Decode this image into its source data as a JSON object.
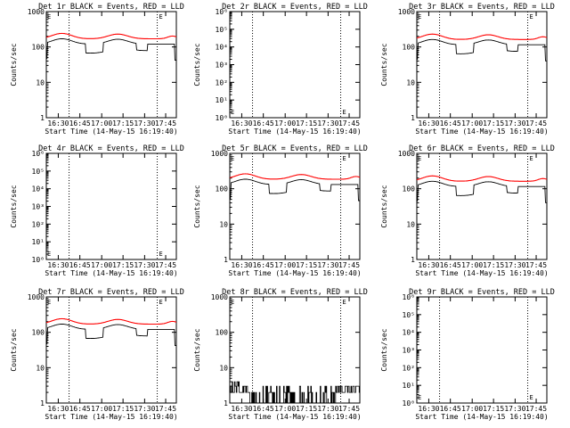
{
  "figure": {
    "ylabel": "Counts/sec",
    "xlabel": "Start Time (14-May-15 16:19:40)",
    "marker": "E"
  },
  "chart_data": [
    {
      "type": "line",
      "title": "Det 1r BLACK = Events, RED = LLD",
      "yscale": "log",
      "ylim": [
        1,
        1000
      ],
      "yticks": [
        "1",
        "10",
        "100",
        "1000"
      ],
      "xticks": [
        "16:30",
        "16:45",
        "17:00",
        "17:15",
        "17:30",
        "17:45"
      ],
      "flat": false,
      "events_base": 110,
      "lld_ratio": 1.55,
      "series": [
        {
          "name": "Events",
          "color": "#000000"
        },
        {
          "name": "LLD",
          "color": "#ff0000"
        }
      ]
    },
    {
      "type": "line",
      "title": "Det 2r BLACK = Events, RED = LLD",
      "yscale": "log",
      "ylim": [
        1,
        1000000
      ],
      "yticks": [
        "10⁰",
        "10¹",
        "10²",
        "10³",
        "10⁴",
        "10⁵",
        "10⁶"
      ],
      "xticks": [
        "16:30",
        "16:45",
        "17:00",
        "17:15",
        "17:30",
        "17:45"
      ],
      "flat": true,
      "series": []
    },
    {
      "type": "line",
      "title": "Det 3r BLACK = Events, RED = LLD",
      "yscale": "log",
      "ylim": [
        1,
        1000
      ],
      "yticks": [
        "1",
        "10",
        "100",
        "1000"
      ],
      "xticks": [
        "16:30",
        "16:45",
        "17:00",
        "17:15",
        "17:30",
        "17:45"
      ],
      "flat": false,
      "events_base": 105,
      "lld_ratio": 1.55,
      "series": [
        {
          "name": "Events",
          "color": "#000000"
        },
        {
          "name": "LLD",
          "color": "#ff0000"
        }
      ]
    },
    {
      "type": "line",
      "title": "Det 4r BLACK = Events, RED = LLD",
      "yscale": "log",
      "ylim": [
        1,
        1000000
      ],
      "yticks": [
        "10⁰",
        "10¹",
        "10²",
        "10³",
        "10⁴",
        "10⁵",
        "10⁶"
      ],
      "xticks": [
        "16:30",
        "16:45",
        "17:00",
        "17:15",
        "17:30",
        "17:45"
      ],
      "flat": true,
      "series": []
    },
    {
      "type": "line",
      "title": "Det 5r BLACK = Events, RED = LLD",
      "yscale": "log",
      "ylim": [
        1,
        1000
      ],
      "yticks": [
        "1",
        "10",
        "100",
        "1000"
      ],
      "xticks": [
        "16:30",
        "16:45",
        "17:00",
        "17:15",
        "17:30",
        "17:45"
      ],
      "flat": false,
      "events_base": 120,
      "lld_ratio": 1.55,
      "series": [
        {
          "name": "Events",
          "color": "#000000"
        },
        {
          "name": "LLD",
          "color": "#ff0000"
        }
      ]
    },
    {
      "type": "line",
      "title": "Det 6r BLACK = Events, RED = LLD",
      "yscale": "log",
      "ylim": [
        1,
        1000
      ],
      "yticks": [
        "1",
        "10",
        "100",
        "1000"
      ],
      "xticks": [
        "16:30",
        "16:45",
        "17:00",
        "17:15",
        "17:30",
        "17:45"
      ],
      "flat": false,
      "events_base": 105,
      "lld_ratio": 1.55,
      "series": [
        {
          "name": "Events",
          "color": "#000000"
        },
        {
          "name": "LLD",
          "color": "#ff0000"
        }
      ]
    },
    {
      "type": "line",
      "title": "Det 7r BLACK = Events, RED = LLD",
      "yscale": "log",
      "ylim": [
        1,
        1000
      ],
      "yticks": [
        "1",
        "10",
        "100",
        "1000"
      ],
      "xticks": [
        "16:30",
        "16:45",
        "17:00",
        "17:15",
        "17:30",
        "17:45"
      ],
      "flat": false,
      "events_base": 110,
      "lld_ratio": 1.55,
      "series": [
        {
          "name": "Events",
          "color": "#000000"
        },
        {
          "name": "LLD",
          "color": "#ff0000"
        }
      ]
    },
    {
      "type": "line",
      "title": "Det 8r BLACK = Events, RED = LLD",
      "yscale": "log",
      "ylim": [
        1,
        1000
      ],
      "yticks": [
        "1",
        "10",
        "100",
        "1000"
      ],
      "xticks": [
        "16:30",
        "16:45",
        "17:00",
        "17:15",
        "17:30",
        "17:45"
      ],
      "flat": false,
      "noisy": true,
      "series": [
        {
          "name": "Events",
          "color": "#000000",
          "values_range": [
            1,
            4
          ]
        }
      ]
    },
    {
      "type": "line",
      "title": "Det 9r BLACK = Events, RED = LLD",
      "yscale": "log",
      "ylim": [
        1,
        1000000
      ],
      "yticks": [
        "10⁰",
        "10¹",
        "10²",
        "10³",
        "10⁴",
        "10⁵",
        "10⁶"
      ],
      "xticks": [
        "16:30",
        "16:45",
        "17:00",
        "17:15",
        "17:30",
        "17:45"
      ],
      "flat": true,
      "series": []
    }
  ]
}
